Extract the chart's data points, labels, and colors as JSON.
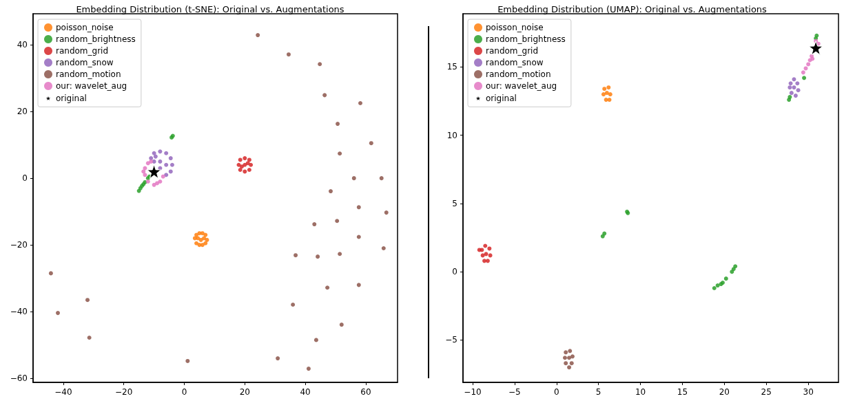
{
  "chart_data": [
    {
      "type": "scatter",
      "title": "Embedding Distribution (t-SNE): Original vs. Augmentations",
      "xlim": [
        -50,
        70.5
      ],
      "ylim": [
        -61.2,
        49.3
      ],
      "xticks": [
        -40,
        -20,
        0,
        20,
        40,
        60
      ],
      "yticks": [
        -60,
        -40,
        -20,
        0,
        20,
        40
      ],
      "grid": false,
      "legend": "top left",
      "marker": "circle",
      "series": [
        {
          "name": "poisson_noise",
          "color": "#ff7f0e",
          "x": [
            3.5,
            4,
            5,
            6,
            7,
            7.5,
            7,
            6,
            5,
            4,
            5.5,
            4.5,
            6.5
          ],
          "values": [
            -18,
            -17,
            -16.5,
            -16.5,
            -17,
            -18.5,
            -19.5,
            -20,
            -20,
            -19.5,
            -18.5,
            -18,
            -18
          ]
        },
        {
          "name": "random_brightness",
          "color": "#2ca02c",
          "x": [
            -15,
            -14.5,
            -14,
            -13.5,
            -13,
            -12,
            -11.5,
            -4.2,
            -3.8
          ],
          "values": [
            -3.8,
            -3,
            -2.3,
            -1.8,
            -1.2,
            0,
            0.5,
            12.2,
            12.7
          ]
        },
        {
          "name": "random_grid",
          "color": "#d62728",
          "x": [
            18,
            18.5,
            20,
            21.5,
            22,
            21.5,
            20,
            18.5,
            20,
            19,
            21
          ],
          "values": [
            4,
            5.5,
            6,
            5.5,
            4,
            2.5,
            2,
            2.5,
            4,
            3.5,
            4.5
          ]
        },
        {
          "name": "random_snow",
          "color": "#9467bd",
          "x": [
            -11,
            -10,
            -8,
            -6,
            -4.5,
            -4,
            -4.5,
            -6,
            -8,
            -8,
            -6,
            -10,
            -9.5
          ],
          "values": [
            6,
            7.5,
            8,
            7.5,
            6,
            4,
            2,
            1,
            3,
            5,
            4,
            5,
            6.5
          ]
        },
        {
          "name": "random_motion",
          "color": "#8c564b",
          "x": [
            24.3,
            34.5,
            44.8,
            46.4,
            58.2,
            50.7,
            61.8,
            51.4,
            56.1,
            65.2,
            48.4,
            57.7,
            66.8,
            43,
            50.5,
            57.7,
            65.9,
            36.8,
            44.1,
            51.4,
            -44.1,
            47.3,
            57.7,
            -32,
            35.9,
            -41.8,
            52,
            -31.4,
            43.6,
            1.1,
            30.9,
            41.1
          ],
          "values": [
            42.9,
            37.1,
            34.2,
            24.9,
            22.5,
            16.3,
            10.5,
            7.4,
            0,
            0,
            -3.9,
            -8.7,
            -10.3,
            -13.8,
            -12.8,
            -17.6,
            -21,
            -23.1,
            -23.5,
            -22.7,
            -28.5,
            -32.8,
            -32,
            -36.5,
            -37.9,
            -40.4,
            -43.9,
            -47.8,
            -48.5,
            -54.8,
            -54,
            -57.1
          ]
        },
        {
          "name": "our: wavelet_aug",
          "color": "#e377c2",
          "x": [
            -13,
            -13,
            -12,
            -10,
            -8,
            -7,
            -12,
            -11,
            -13.5,
            -9
          ],
          "values": [
            3,
            1,
            -1,
            -2,
            -1,
            0.5,
            4.5,
            5,
            2,
            -1.5
          ]
        },
        {
          "name": "original",
          "color": "#000000",
          "marker": "star",
          "x": [
            -10
          ],
          "values": [
            2
          ]
        }
      ]
    },
    {
      "type": "scatter",
      "title": "Embedding Distribution (UMAP): Original vs. Augmentations",
      "xlim": [
        -11.15,
        33.6
      ],
      "ylim": [
        -8.1,
        18.9
      ],
      "xticks": [
        -10,
        -5,
        0,
        5,
        10,
        15,
        20,
        25,
        30
      ],
      "yticks": [
        -5,
        0,
        5,
        10,
        15
      ],
      "grid": false,
      "legend": "top left",
      "marker": "circle",
      "series": [
        {
          "name": "poisson_noise",
          "color": "#ff7f0e",
          "x": [
            5.7,
            6.2,
            6.4,
            6.3,
            5.9,
            5.6,
            6
          ],
          "values": [
            13.4,
            13.5,
            13,
            12.6,
            12.6,
            13,
            13.1
          ]
        },
        {
          "name": "random_brightness",
          "color": "#2ca02c",
          "x": [
            8.4,
            8.5,
            5.5,
            5.7,
            18.8,
            19.2,
            19.6,
            19.8,
            20.2,
            20.9,
            21.1,
            21.3,
            27.7,
            27.8,
            29.5,
            31,
            30.9
          ],
          "values": [
            4.4,
            4.3,
            2.6,
            2.8,
            -1.2,
            -1,
            -0.9,
            -0.8,
            -0.5,
            0,
            0.2,
            0.4,
            12.6,
            12.8,
            14.2,
            17.3,
            17.1
          ]
        },
        {
          "name": "random_grid",
          "color": "#d62728",
          "x": [
            -8.9,
            -8.5,
            -8,
            -7.9,
            -8.2,
            -8.6,
            -8.8,
            -8.4,
            -9.2
          ],
          "values": [
            1.6,
            1.9,
            1.7,
            1.2,
            0.8,
            0.8,
            1.2,
            1.3,
            1.6
          ]
        },
        {
          "name": "random_snow",
          "color": "#9467bd",
          "x": [
            27.9,
            28.3,
            28.7,
            28.8,
            28.5,
            28,
            27.8,
            28.3
          ],
          "values": [
            13.8,
            14.1,
            13.8,
            13.3,
            12.9,
            13.1,
            13.5,
            13.5
          ]
        },
        {
          "name": "random_motion",
          "color": "#8c564b",
          "x": [
            1.1,
            1.6,
            1.9,
            1.8,
            1.5,
            1.1,
            1,
            1.5
          ],
          "values": [
            -5.9,
            -5.8,
            -6.2,
            -6.7,
            -7,
            -6.7,
            -6.3,
            -6.3
          ]
        },
        {
          "name": "our: wavelet_aug",
          "color": "#e377c2",
          "x": [
            29.4,
            29.7,
            30,
            30.2,
            30.4,
            30.9,
            31.2,
            30.5
          ],
          "values": [
            14.6,
            14.9,
            15.2,
            15.5,
            15.8,
            16.9,
            16.7,
            15.6
          ]
        },
        {
          "name": "original",
          "color": "#000000",
          "marker": "star",
          "x": [
            30.9
          ],
          "values": [
            16.4
          ]
        }
      ]
    }
  ]
}
